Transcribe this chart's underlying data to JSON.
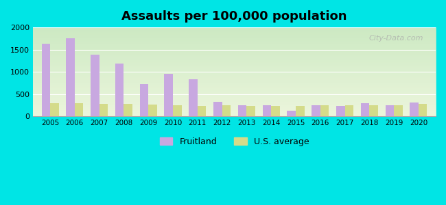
{
  "title": "Assaults per 100,000 population",
  "years": [
    2005,
    2006,
    2007,
    2008,
    2009,
    2010,
    2011,
    2012,
    2013,
    2014,
    2015,
    2016,
    2017,
    2018,
    2019,
    2020
  ],
  "fruitland": [
    1640,
    1760,
    1390,
    1190,
    730,
    960,
    840,
    320,
    255,
    250,
    120,
    250,
    235,
    295,
    245,
    305
  ],
  "us_average": [
    290,
    290,
    280,
    285,
    270,
    255,
    240,
    250,
    230,
    230,
    235,
    245,
    245,
    245,
    245,
    285
  ],
  "fruitland_color": "#c8a8e0",
  "us_average_color": "#d4db8a",
  "background_top": "#e8f5e8",
  "background_bottom": "#f0f8e8",
  "outer_bg": "#00e5e5",
  "ylim": [
    0,
    2000
  ],
  "yticks": [
    0,
    500,
    1000,
    1500,
    2000
  ],
  "legend_labels": [
    "Fruitland",
    "U.S. average"
  ],
  "bar_width": 0.35,
  "watermark": "City-Data.com"
}
